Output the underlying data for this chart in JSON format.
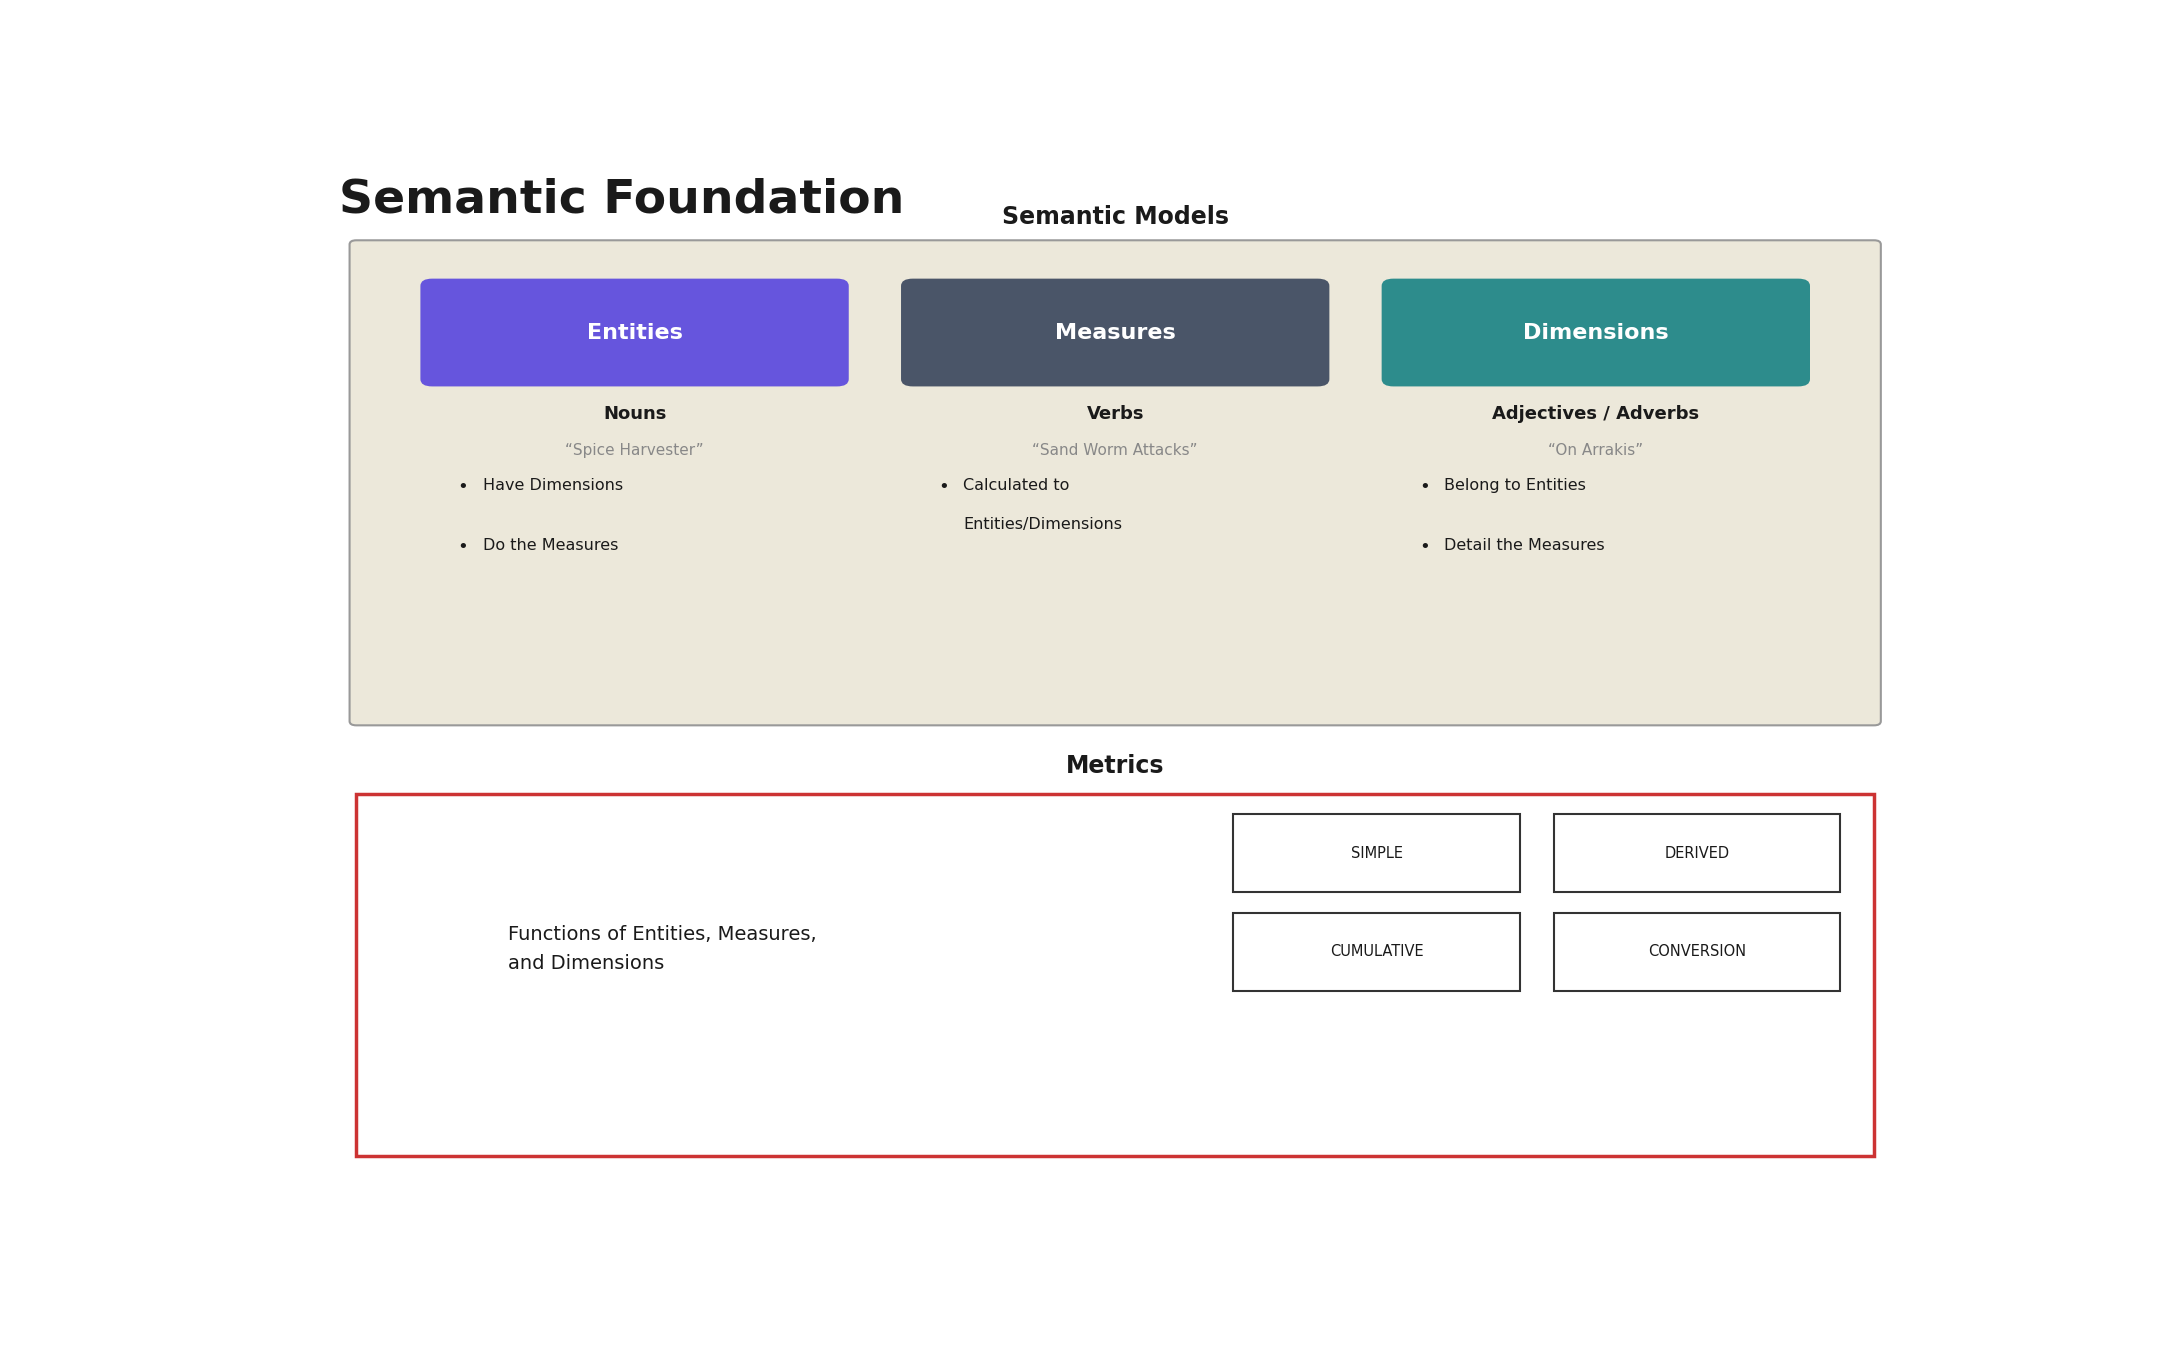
{
  "title": "Semantic Foundation",
  "bg_color": "#ffffff",
  "fig_width": 21.76,
  "fig_height": 13.46,
  "semantic_models_label": "Semantic Models",
  "semantic_box_bg": "#ece8da",
  "semantic_box_border": "#999999",
  "entities_label": "Entities",
  "entities_color": "#6655dd",
  "measures_label": "Measures",
  "measures_color": "#4a5568",
  "dimensions_label": "Dimensions",
  "dimensions_color": "#2d8c8c",
  "entities_sub_bold": "Nouns",
  "entities_sub_italic": "“Spice Harvester”",
  "entities_bullets": [
    "Have Dimensions",
    "Do the Measures"
  ],
  "measures_sub_bold": "Verbs",
  "measures_sub_italic": "“Sand Worm Attacks”",
  "measures_bullets": [
    "Calculated to\nEntities/Dimensions"
  ],
  "dimensions_sub_bold": "Adjectives / Adverbs",
  "dimensions_sub_italic": "“On Arrakis”",
  "dimensions_bullets": [
    "Belong to Entities",
    "Detail the Measures"
  ],
  "metrics_label": "Metrics",
  "metrics_box_border": "#cc3333",
  "metrics_text": "Functions of Entities, Measures,\nand Dimensions",
  "metrics_boxes": [
    "SIMPLE",
    "DERIVED",
    "CUMULATIVE",
    "CONVERSION"
  ]
}
